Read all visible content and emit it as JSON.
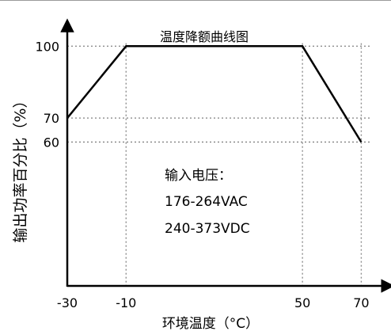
{
  "chart_data": {
    "type": "line",
    "title": "温度降额曲线图",
    "xlabel": "环境温度（°C）",
    "ylabel": "输出功率百分比（%）",
    "x_ticks": [
      {
        "value": -30,
        "label": "-30"
      },
      {
        "value": -10,
        "label": "-10"
      },
      {
        "value": 50,
        "label": "50"
      },
      {
        "value": 70,
        "label": "70"
      }
    ],
    "y_ticks": [
      {
        "value": 60,
        "label": "60"
      },
      {
        "value": 70,
        "label": "70"
      },
      {
        "value": 100,
        "label": "100"
      }
    ],
    "xlim": [
      -30,
      75
    ],
    "ylim": [
      0,
      110
    ],
    "grid": "dotted at tick values",
    "series": [
      {
        "x": [
          -30,
          -10,
          50,
          70
        ],
        "y": [
          70,
          100,
          100,
          60
        ],
        "color": "#000000"
      }
    ],
    "annotation": {
      "lines": [
        "输入电压：",
        "176-264VAC",
        "240-373VDC"
      ]
    }
  }
}
